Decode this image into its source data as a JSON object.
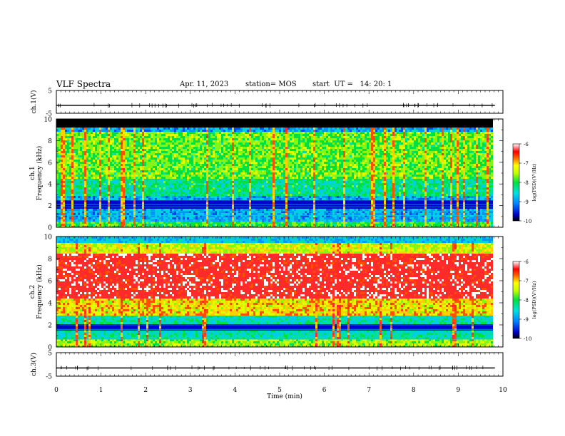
{
  "header": {
    "title": "VLF Spectra",
    "date": "Apr. 11, 2023",
    "station": "station= MOS",
    "start": "start  UT =   14: 20: 1"
  },
  "chart_data": [
    {
      "type": "line",
      "name": "ch1-waveform",
      "ylabel": "ch.1(V)",
      "ylim": [
        -5,
        5
      ],
      "yticks": [
        "5",
        "-5"
      ],
      "x": [
        0,
        10
      ],
      "y": [
        -1.5,
        -1.5
      ],
      "color": "#000000"
    },
    {
      "type": "heatmap",
      "name": "ch1-spectrogram",
      "ylabel": "ch.1\nFrequency (kHz)",
      "ylim": [
        0,
        10
      ],
      "yticks": [
        "0",
        "2",
        "4",
        "6",
        "8",
        "10"
      ],
      "xlim": [
        0,
        10
      ],
      "colorbar": {
        "label": "log(PSD)(V²/Hz)",
        "range": [
          -10,
          -6
        ],
        "ticks": [
          "-6",
          "-7",
          "-8",
          "-9",
          "-10"
        ]
      }
    },
    {
      "type": "heatmap",
      "name": "ch2-spectrogram",
      "ylabel": "ch.2\nFrequency (kHz)",
      "ylim": [
        0,
        10
      ],
      "yticks": [
        "0",
        "2",
        "4",
        "6",
        "8",
        "10"
      ],
      "xlim": [
        0,
        10
      ],
      "colorbar": {
        "label": "log(PSD)(V²/Hz)",
        "range": [
          -10,
          -6
        ],
        "ticks": [
          "-6",
          "-7",
          "-8",
          "-9",
          "-10"
        ]
      }
    },
    {
      "type": "line",
      "name": "ch3-waveform",
      "ylabel": "ch.3(V)",
      "ylim": [
        -5,
        5
      ],
      "yticks": [
        "5",
        "-5"
      ],
      "x": [
        0,
        10
      ],
      "y": [
        -1.5,
        -1.5
      ],
      "color": "#000000"
    }
  ],
  "xaxis": {
    "label": "Time (min)",
    "ticks": [
      "0",
      "1",
      "2",
      "3",
      "4",
      "5",
      "6",
      "7",
      "8",
      "9",
      "10"
    ],
    "range": [
      0,
      10
    ]
  }
}
